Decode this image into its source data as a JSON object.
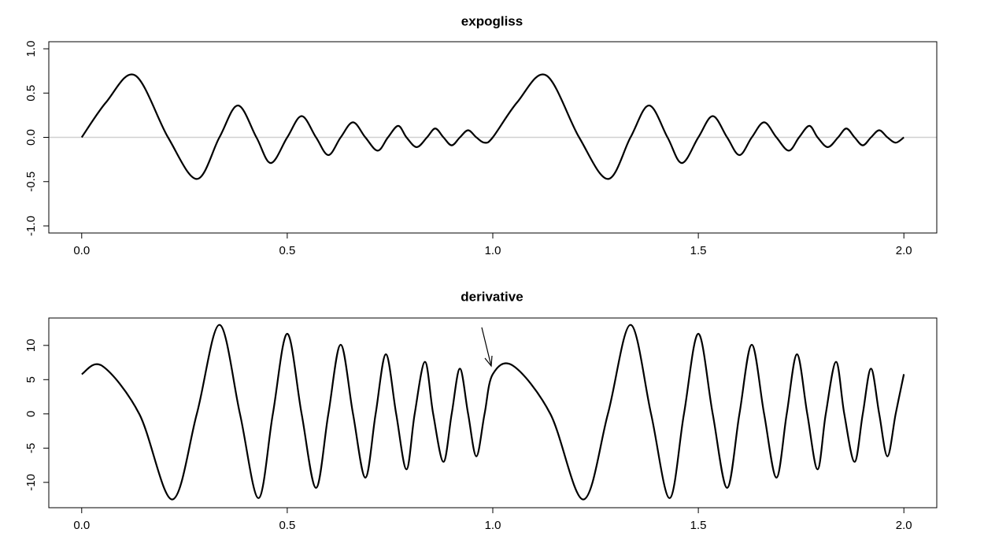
{
  "chart_data": [
    {
      "type": "line",
      "title": "expogliss",
      "color": "#000000",
      "reference_line": 0,
      "x": [
        0,
        0.06,
        0.13,
        0.21,
        0.28,
        0.335,
        0.38,
        0.425,
        0.46,
        0.5,
        0.535,
        0.57,
        0.6,
        0.63,
        0.66,
        0.69,
        0.72,
        0.745,
        0.77,
        0.79,
        0.815,
        0.84,
        0.86,
        0.88,
        0.9,
        0.92,
        0.94,
        0.96,
        0.98,
        1.0,
        1.06,
        1.13,
        1.21,
        1.28,
        1.335,
        1.38,
        1.425,
        1.46,
        1.5,
        1.535,
        1.57,
        1.6,
        1.63,
        1.66,
        1.69,
        1.72,
        1.745,
        1.77,
        1.79,
        1.815,
        1.84,
        1.86,
        1.88,
        1.9,
        1.92,
        1.94,
        1.96,
        1.98,
        2.0
      ],
      "values": [
        0,
        0.4,
        0.7,
        0,
        -0.47,
        0,
        0.36,
        0,
        -0.29,
        0,
        0.24,
        0,
        -0.2,
        0,
        0.17,
        0,
        -0.15,
        0,
        0.13,
        0,
        -0.11,
        0,
        0.1,
        0,
        -0.09,
        0,
        0.08,
        0,
        -0.06,
        0,
        0.4,
        0.7,
        0,
        -0.47,
        0,
        0.36,
        0,
        -0.29,
        0,
        0.24,
        0,
        -0.2,
        0,
        0.17,
        0,
        -0.15,
        0,
        0.13,
        0,
        -0.11,
        0,
        0.1,
        0,
        -0.09,
        0,
        0.08,
        0,
        -0.06,
        0
      ],
      "xlim": [
        -0.08,
        2.08
      ],
      "ylim": [
        -1.08,
        1.08
      ],
      "xticks": [
        {
          "value": 0,
          "label": "0.0"
        },
        {
          "value": 0.5,
          "label": "0.5"
        },
        {
          "value": 1,
          "label": "1.0"
        },
        {
          "value": 1.5,
          "label": "1.5"
        },
        {
          "value": 2,
          "label": "2.0"
        }
      ],
      "yticks": [
        {
          "value": -1,
          "label": "-1.0"
        },
        {
          "value": -0.5,
          "label": "-0.5"
        },
        {
          "value": 0,
          "label": "0.0"
        },
        {
          "value": 0.5,
          "label": "0.5"
        },
        {
          "value": 1,
          "label": "1.0"
        }
      ]
    },
    {
      "type": "line",
      "title": "derivative",
      "color": "#000000",
      "x": [
        0,
        0.05,
        0.14,
        0.22,
        0.28,
        0.335,
        0.385,
        0.43,
        0.465,
        0.5,
        0.535,
        0.57,
        0.6,
        0.63,
        0.66,
        0.69,
        0.715,
        0.74,
        0.765,
        0.79,
        0.81,
        0.835,
        0.855,
        0.88,
        0.9,
        0.92,
        0.94,
        0.96,
        0.98,
        1.0,
        1.05,
        1.14,
        1.22,
        1.28,
        1.335,
        1.385,
        1.43,
        1.465,
        1.5,
        1.535,
        1.57,
        1.6,
        1.63,
        1.66,
        1.69,
        1.715,
        1.74,
        1.765,
        1.79,
        1.81,
        1.835,
        1.855,
        1.88,
        1.9,
        1.92,
        1.94,
        1.96,
        1.98,
        2.0
      ],
      "values": [
        5.8,
        7.0,
        0,
        -12.5,
        0,
        13.0,
        0,
        -12.3,
        0,
        11.7,
        0,
        -10.8,
        0,
        10.1,
        0,
        -9.3,
        0,
        8.7,
        0,
        -8.1,
        0,
        7.6,
        0,
        -7.0,
        0,
        6.6,
        0,
        -6.2,
        0,
        5.8,
        7.0,
        0,
        -12.5,
        0,
        13.0,
        0,
        -12.3,
        0,
        11.7,
        0,
        -10.8,
        0,
        10.1,
        0,
        -9.3,
        0,
        8.7,
        0,
        -8.1,
        0,
        7.6,
        0,
        -7.0,
        0,
        6.6,
        0,
        -6.2,
        0,
        5.8
      ],
      "xlim": [
        -0.08,
        2.08
      ],
      "ylim": [
        -13.7,
        14.0
      ],
      "xticks": [
        {
          "value": 0,
          "label": "0.0"
        },
        {
          "value": 0.5,
          "label": "0.5"
        },
        {
          "value": 1,
          "label": "1.0"
        },
        {
          "value": 1.5,
          "label": "1.5"
        },
        {
          "value": 2,
          "label": "2.0"
        }
      ],
      "yticks": [
        -10,
        -5,
        0,
        5,
        10
      ]
    }
  ]
}
